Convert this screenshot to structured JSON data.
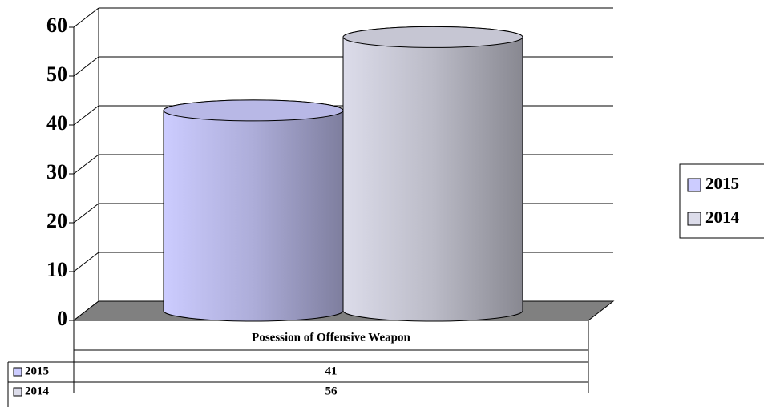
{
  "chart_data": {
    "type": "bar",
    "categories": [
      "Posession of Offensive Weapon"
    ],
    "series": [
      {
        "name": "2015",
        "color": "#ccccff",
        "values": [
          41
        ]
      },
      {
        "name": "2014",
        "color": "#dcdcea",
        "values": [
          56
        ]
      }
    ],
    "ylim": [
      0,
      60
    ],
    "yticks": [
      0,
      10,
      20,
      30,
      40,
      50,
      60
    ],
    "grid": true,
    "legend": "right"
  }
}
